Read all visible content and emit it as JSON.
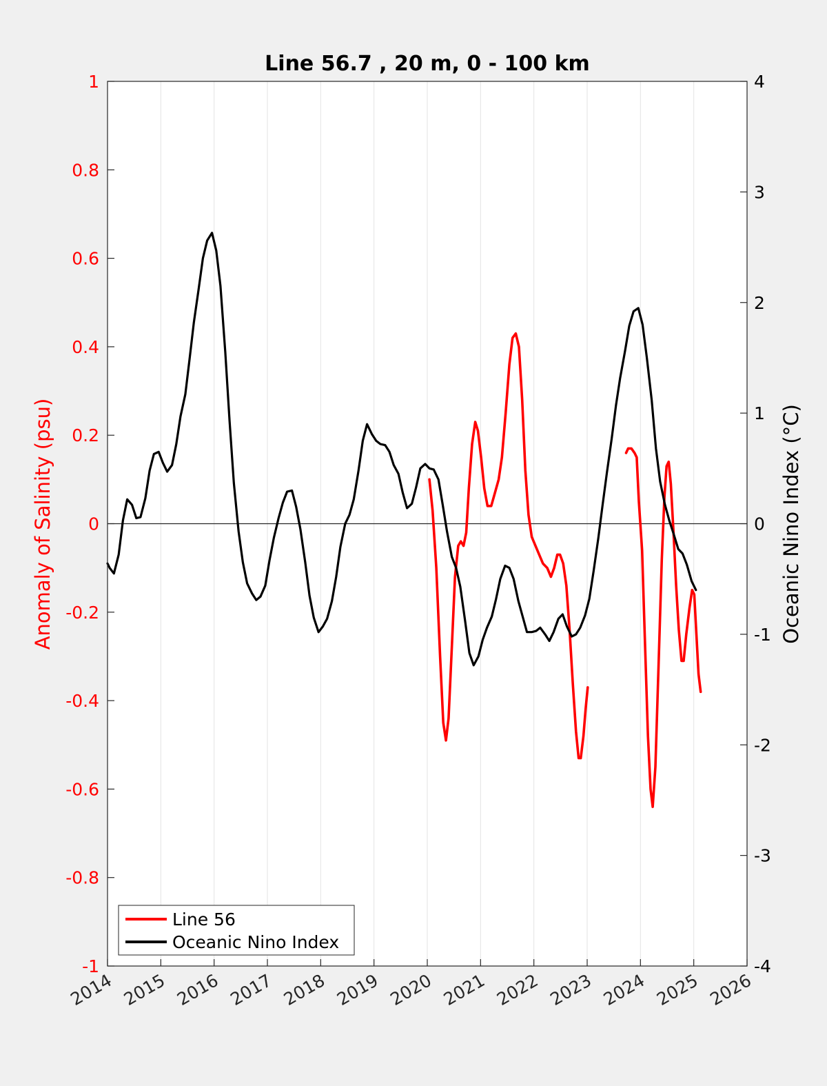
{
  "chart_data": {
    "type": "line",
    "title": "Line 56.7 , 20 m, 0 - 100 km",
    "xlim": [
      2014,
      2026
    ],
    "xticks": [
      "2014",
      "2015",
      "2016",
      "2017",
      "2018",
      "2019",
      "2020",
      "2021",
      "2022",
      "2023",
      "2024",
      "2025",
      "2026"
    ],
    "ylabel_left": "Anomaly of Salinity (psu)",
    "ylim_left": [
      -1,
      1
    ],
    "yticks_left": [
      "-1",
      "-0.8",
      "-0.6",
      "-0.4",
      "-0.2",
      "0",
      "0.2",
      "0.4",
      "0.6",
      "0.8",
      "1"
    ],
    "ylabel_right": "Oceanic Nino Index (°C)",
    "ylim_right": [
      -4,
      4
    ],
    "yticks_right": [
      "-4",
      "-3",
      "-2",
      "-1",
      "0",
      "1",
      "2",
      "3",
      "4"
    ],
    "grid": "vertical",
    "zero_line": true,
    "legend_position": "bottom-left",
    "series": [
      {
        "name": "Line 56",
        "axis": "left",
        "color": "#ff0000",
        "segments": [
          [
            [
              2020.04,
              0.1
            ],
            [
              2020.1,
              0.03
            ],
            [
              2020.17,
              -0.1
            ],
            [
              2020.24,
              -0.3
            ],
            [
              2020.3,
              -0.45
            ],
            [
              2020.35,
              -0.49
            ],
            [
              2020.4,
              -0.44
            ],
            [
              2020.46,
              -0.28
            ],
            [
              2020.52,
              -0.12
            ],
            [
              2020.58,
              -0.05
            ],
            [
              2020.63,
              -0.04
            ],
            [
              2020.68,
              -0.05
            ],
            [
              2020.73,
              -0.02
            ],
            [
              2020.78,
              0.08
            ],
            [
              2020.84,
              0.18
            ],
            [
              2020.9,
              0.23
            ],
            [
              2020.95,
              0.21
            ],
            [
              2021.01,
              0.15
            ],
            [
              2021.07,
              0.08
            ],
            [
              2021.13,
              0.04
            ],
            [
              2021.2,
              0.04
            ],
            [
              2021.27,
              0.07
            ],
            [
              2021.34,
              0.1
            ],
            [
              2021.4,
              0.15
            ],
            [
              2021.47,
              0.25
            ],
            [
              2021.54,
              0.36
            ],
            [
              2021.6,
              0.42
            ],
            [
              2021.66,
              0.43
            ],
            [
              2021.72,
              0.4
            ],
            [
              2021.78,
              0.28
            ],
            [
              2021.84,
              0.12
            ],
            [
              2021.9,
              0.02
            ],
            [
              2021.96,
              -0.03
            ],
            [
              2022.03,
              -0.05
            ],
            [
              2022.1,
              -0.07
            ],
            [
              2022.17,
              -0.09
            ],
            [
              2022.25,
              -0.1
            ],
            [
              2022.32,
              -0.12
            ],
            [
              2022.38,
              -0.1
            ],
            [
              2022.44,
              -0.07
            ],
            [
              2022.49,
              -0.07
            ],
            [
              2022.55,
              -0.09
            ],
            [
              2022.61,
              -0.14
            ],
            [
              2022.67,
              -0.24
            ],
            [
              2022.73,
              -0.36
            ],
            [
              2022.79,
              -0.47
            ],
            [
              2022.84,
              -0.53
            ],
            [
              2022.88,
              -0.53
            ],
            [
              2022.93,
              -0.48
            ],
            [
              2022.97,
              -0.42
            ],
            [
              2023.01,
              -0.37
            ]
          ],
          [
            [
              2023.73,
              0.16
            ],
            [
              2023.77,
              0.17
            ],
            [
              2023.83,
              0.17
            ],
            [
              2023.89,
              0.16
            ],
            [
              2023.93,
              0.15
            ],
            [
              2023.97,
              0.05
            ],
            [
              2024.03,
              -0.06
            ],
            [
              2024.08,
              -0.25
            ],
            [
              2024.14,
              -0.48
            ],
            [
              2024.19,
              -0.6
            ],
            [
              2024.23,
              -0.64
            ],
            [
              2024.28,
              -0.55
            ],
            [
              2024.34,
              -0.32
            ],
            [
              2024.4,
              -0.08
            ],
            [
              2024.45,
              0.06
            ],
            [
              2024.49,
              0.13
            ],
            [
              2024.53,
              0.14
            ],
            [
              2024.57,
              0.09
            ],
            [
              2024.62,
              -0.02
            ],
            [
              2024.67,
              -0.14
            ],
            [
              2024.72,
              -0.24
            ],
            [
              2024.77,
              -0.31
            ],
            [
              2024.81,
              -0.31
            ],
            [
              2024.86,
              -0.25
            ],
            [
              2024.92,
              -0.19
            ],
            [
              2024.97,
              -0.15
            ],
            [
              2025.01,
              -0.16
            ],
            [
              2025.05,
              -0.25
            ],
            [
              2025.09,
              -0.34
            ],
            [
              2025.13,
              -0.38
            ]
          ]
        ]
      },
      {
        "name": "Oceanic Nino Index",
        "axis": "right",
        "color": "#000000",
        "segments": [
          [
            [
              2014.0,
              -0.36
            ],
            [
              2014.04,
              -0.4
            ],
            [
              2014.12,
              -0.45
            ],
            [
              2014.21,
              -0.28
            ],
            [
              2014.29,
              0.03
            ],
            [
              2014.37,
              0.22
            ],
            [
              2014.46,
              0.17
            ],
            [
              2014.54,
              0.05
            ],
            [
              2014.62,
              0.06
            ],
            [
              2014.71,
              0.23
            ],
            [
              2014.79,
              0.48
            ],
            [
              2014.87,
              0.63
            ],
            [
              2014.96,
              0.65
            ],
            [
              2015.04,
              0.55
            ],
            [
              2015.12,
              0.47
            ],
            [
              2015.21,
              0.53
            ],
            [
              2015.29,
              0.72
            ],
            [
              2015.37,
              0.97
            ],
            [
              2015.46,
              1.17
            ],
            [
              2015.54,
              1.49
            ],
            [
              2015.62,
              1.82
            ],
            [
              2015.71,
              2.12
            ],
            [
              2015.79,
              2.4
            ],
            [
              2015.87,
              2.56
            ],
            [
              2015.96,
              2.63
            ],
            [
              2016.04,
              2.47
            ],
            [
              2016.12,
              2.15
            ],
            [
              2016.21,
              1.55
            ],
            [
              2016.29,
              0.93
            ],
            [
              2016.37,
              0.37
            ],
            [
              2016.46,
              -0.07
            ],
            [
              2016.54,
              -0.35
            ],
            [
              2016.62,
              -0.54
            ],
            [
              2016.71,
              -0.63
            ],
            [
              2016.79,
              -0.69
            ],
            [
              2016.87,
              -0.66
            ],
            [
              2016.96,
              -0.56
            ],
            [
              2017.04,
              -0.33
            ],
            [
              2017.12,
              -0.13
            ],
            [
              2017.21,
              0.05
            ],
            [
              2017.29,
              0.19
            ],
            [
              2017.37,
              0.29
            ],
            [
              2017.46,
              0.3
            ],
            [
              2017.54,
              0.15
            ],
            [
              2017.62,
              -0.05
            ],
            [
              2017.71,
              -0.35
            ],
            [
              2017.79,
              -0.65
            ],
            [
              2017.87,
              -0.85
            ],
            [
              2017.96,
              -0.98
            ],
            [
              2018.04,
              -0.93
            ],
            [
              2018.12,
              -0.86
            ],
            [
              2018.21,
              -0.7
            ],
            [
              2018.29,
              -0.48
            ],
            [
              2018.37,
              -0.21
            ],
            [
              2018.46,
              0.0
            ],
            [
              2018.54,
              0.08
            ],
            [
              2018.62,
              0.22
            ],
            [
              2018.71,
              0.48
            ],
            [
              2018.79,
              0.75
            ],
            [
              2018.87,
              0.9
            ],
            [
              2018.96,
              0.81
            ],
            [
              2019.04,
              0.75
            ],
            [
              2019.12,
              0.72
            ],
            [
              2019.21,
              0.71
            ],
            [
              2019.29,
              0.65
            ],
            [
              2019.37,
              0.53
            ],
            [
              2019.46,
              0.45
            ],
            [
              2019.54,
              0.28
            ],
            [
              2019.62,
              0.14
            ],
            [
              2019.71,
              0.18
            ],
            [
              2019.79,
              0.33
            ],
            [
              2019.87,
              0.5
            ],
            [
              2019.96,
              0.54
            ],
            [
              2020.04,
              0.5
            ],
            [
              2020.12,
              0.49
            ],
            [
              2020.21,
              0.4
            ],
            [
              2020.29,
              0.17
            ],
            [
              2020.37,
              -0.07
            ],
            [
              2020.46,
              -0.3
            ],
            [
              2020.54,
              -0.4
            ],
            [
              2020.62,
              -0.57
            ],
            [
              2020.71,
              -0.88
            ],
            [
              2020.79,
              -1.17
            ],
            [
              2020.87,
              -1.28
            ],
            [
              2020.96,
              -1.2
            ],
            [
              2021.04,
              -1.05
            ],
            [
              2021.12,
              -0.94
            ],
            [
              2021.21,
              -0.84
            ],
            [
              2021.29,
              -0.68
            ],
            [
              2021.37,
              -0.5
            ],
            [
              2021.46,
              -0.38
            ],
            [
              2021.54,
              -0.4
            ],
            [
              2021.62,
              -0.5
            ],
            [
              2021.71,
              -0.7
            ],
            [
              2021.79,
              -0.84
            ],
            [
              2021.87,
              -0.98
            ],
            [
              2021.96,
              -0.98
            ],
            [
              2022.04,
              -0.97
            ],
            [
              2022.12,
              -0.94
            ],
            [
              2022.21,
              -1.0
            ],
            [
              2022.29,
              -1.06
            ],
            [
              2022.37,
              -0.98
            ],
            [
              2022.46,
              -0.86
            ],
            [
              2022.54,
              -0.82
            ],
            [
              2022.62,
              -0.93
            ],
            [
              2022.71,
              -1.02
            ],
            [
              2022.79,
              -1.0
            ],
            [
              2022.87,
              -0.94
            ],
            [
              2022.96,
              -0.83
            ],
            [
              2023.04,
              -0.68
            ],
            [
              2023.12,
              -0.43
            ],
            [
              2023.21,
              -0.13
            ],
            [
              2023.29,
              0.17
            ],
            [
              2023.37,
              0.46
            ],
            [
              2023.46,
              0.77
            ],
            [
              2023.54,
              1.07
            ],
            [
              2023.62,
              1.32
            ],
            [
              2023.71,
              1.56
            ],
            [
              2023.79,
              1.79
            ],
            [
              2023.87,
              1.92
            ],
            [
              2023.96,
              1.95
            ],
            [
              2024.04,
              1.8
            ],
            [
              2024.12,
              1.5
            ],
            [
              2024.21,
              1.12
            ],
            [
              2024.29,
              0.68
            ],
            [
              2024.37,
              0.38
            ],
            [
              2024.46,
              0.17
            ],
            [
              2024.54,
              0.03
            ],
            [
              2024.62,
              -0.09
            ],
            [
              2024.71,
              -0.23
            ],
            [
              2024.79,
              -0.27
            ],
            [
              2024.87,
              -0.37
            ],
            [
              2024.96,
              -0.52
            ],
            [
              2025.04,
              -0.6
            ]
          ]
        ]
      }
    ]
  }
}
